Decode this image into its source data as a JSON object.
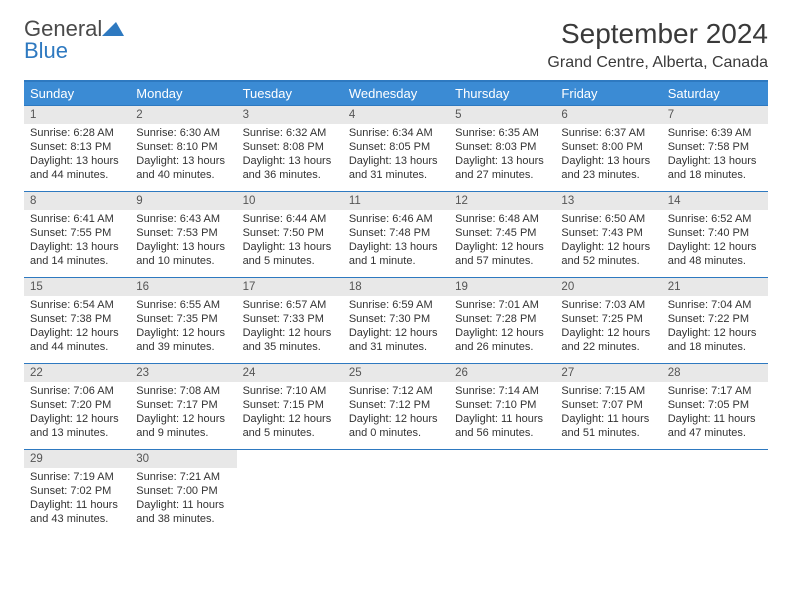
{
  "logo": {
    "text1": "General",
    "text2": "Blue"
  },
  "title": "September 2024",
  "location": "Grand Centre, Alberta, Canada",
  "colors": {
    "header_bg": "#3b8bd4",
    "accent": "#2e79c0",
    "daynum_bg": "#e8e8e8",
    "text": "#333333"
  },
  "day_headers": [
    "Sunday",
    "Monday",
    "Tuesday",
    "Wednesday",
    "Thursday",
    "Friday",
    "Saturday"
  ],
  "days": [
    {
      "n": "1",
      "sunrise": "Sunrise: 6:28 AM",
      "sunset": "Sunset: 8:13 PM",
      "daylight": "Daylight: 13 hours and 44 minutes."
    },
    {
      "n": "2",
      "sunrise": "Sunrise: 6:30 AM",
      "sunset": "Sunset: 8:10 PM",
      "daylight": "Daylight: 13 hours and 40 minutes."
    },
    {
      "n": "3",
      "sunrise": "Sunrise: 6:32 AM",
      "sunset": "Sunset: 8:08 PM",
      "daylight": "Daylight: 13 hours and 36 minutes."
    },
    {
      "n": "4",
      "sunrise": "Sunrise: 6:34 AM",
      "sunset": "Sunset: 8:05 PM",
      "daylight": "Daylight: 13 hours and 31 minutes."
    },
    {
      "n": "5",
      "sunrise": "Sunrise: 6:35 AM",
      "sunset": "Sunset: 8:03 PM",
      "daylight": "Daylight: 13 hours and 27 minutes."
    },
    {
      "n": "6",
      "sunrise": "Sunrise: 6:37 AM",
      "sunset": "Sunset: 8:00 PM",
      "daylight": "Daylight: 13 hours and 23 minutes."
    },
    {
      "n": "7",
      "sunrise": "Sunrise: 6:39 AM",
      "sunset": "Sunset: 7:58 PM",
      "daylight": "Daylight: 13 hours and 18 minutes."
    },
    {
      "n": "8",
      "sunrise": "Sunrise: 6:41 AM",
      "sunset": "Sunset: 7:55 PM",
      "daylight": "Daylight: 13 hours and 14 minutes."
    },
    {
      "n": "9",
      "sunrise": "Sunrise: 6:43 AM",
      "sunset": "Sunset: 7:53 PM",
      "daylight": "Daylight: 13 hours and 10 minutes."
    },
    {
      "n": "10",
      "sunrise": "Sunrise: 6:44 AM",
      "sunset": "Sunset: 7:50 PM",
      "daylight": "Daylight: 13 hours and 5 minutes."
    },
    {
      "n": "11",
      "sunrise": "Sunrise: 6:46 AM",
      "sunset": "Sunset: 7:48 PM",
      "daylight": "Daylight: 13 hours and 1 minute."
    },
    {
      "n": "12",
      "sunrise": "Sunrise: 6:48 AM",
      "sunset": "Sunset: 7:45 PM",
      "daylight": "Daylight: 12 hours and 57 minutes."
    },
    {
      "n": "13",
      "sunrise": "Sunrise: 6:50 AM",
      "sunset": "Sunset: 7:43 PM",
      "daylight": "Daylight: 12 hours and 52 minutes."
    },
    {
      "n": "14",
      "sunrise": "Sunrise: 6:52 AM",
      "sunset": "Sunset: 7:40 PM",
      "daylight": "Daylight: 12 hours and 48 minutes."
    },
    {
      "n": "15",
      "sunrise": "Sunrise: 6:54 AM",
      "sunset": "Sunset: 7:38 PM",
      "daylight": "Daylight: 12 hours and 44 minutes."
    },
    {
      "n": "16",
      "sunrise": "Sunrise: 6:55 AM",
      "sunset": "Sunset: 7:35 PM",
      "daylight": "Daylight: 12 hours and 39 minutes."
    },
    {
      "n": "17",
      "sunrise": "Sunrise: 6:57 AM",
      "sunset": "Sunset: 7:33 PM",
      "daylight": "Daylight: 12 hours and 35 minutes."
    },
    {
      "n": "18",
      "sunrise": "Sunrise: 6:59 AM",
      "sunset": "Sunset: 7:30 PM",
      "daylight": "Daylight: 12 hours and 31 minutes."
    },
    {
      "n": "19",
      "sunrise": "Sunrise: 7:01 AM",
      "sunset": "Sunset: 7:28 PM",
      "daylight": "Daylight: 12 hours and 26 minutes."
    },
    {
      "n": "20",
      "sunrise": "Sunrise: 7:03 AM",
      "sunset": "Sunset: 7:25 PM",
      "daylight": "Daylight: 12 hours and 22 minutes."
    },
    {
      "n": "21",
      "sunrise": "Sunrise: 7:04 AM",
      "sunset": "Sunset: 7:22 PM",
      "daylight": "Daylight: 12 hours and 18 minutes."
    },
    {
      "n": "22",
      "sunrise": "Sunrise: 7:06 AM",
      "sunset": "Sunset: 7:20 PM",
      "daylight": "Daylight: 12 hours and 13 minutes."
    },
    {
      "n": "23",
      "sunrise": "Sunrise: 7:08 AM",
      "sunset": "Sunset: 7:17 PM",
      "daylight": "Daylight: 12 hours and 9 minutes."
    },
    {
      "n": "24",
      "sunrise": "Sunrise: 7:10 AM",
      "sunset": "Sunset: 7:15 PM",
      "daylight": "Daylight: 12 hours and 5 minutes."
    },
    {
      "n": "25",
      "sunrise": "Sunrise: 7:12 AM",
      "sunset": "Sunset: 7:12 PM",
      "daylight": "Daylight: 12 hours and 0 minutes."
    },
    {
      "n": "26",
      "sunrise": "Sunrise: 7:14 AM",
      "sunset": "Sunset: 7:10 PM",
      "daylight": "Daylight: 11 hours and 56 minutes."
    },
    {
      "n": "27",
      "sunrise": "Sunrise: 7:15 AM",
      "sunset": "Sunset: 7:07 PM",
      "daylight": "Daylight: 11 hours and 51 minutes."
    },
    {
      "n": "28",
      "sunrise": "Sunrise: 7:17 AM",
      "sunset": "Sunset: 7:05 PM",
      "daylight": "Daylight: 11 hours and 47 minutes."
    },
    {
      "n": "29",
      "sunrise": "Sunrise: 7:19 AM",
      "sunset": "Sunset: 7:02 PM",
      "daylight": "Daylight: 11 hours and 43 minutes."
    },
    {
      "n": "30",
      "sunrise": "Sunrise: 7:21 AM",
      "sunset": "Sunset: 7:00 PM",
      "daylight": "Daylight: 11 hours and 38 minutes."
    }
  ]
}
